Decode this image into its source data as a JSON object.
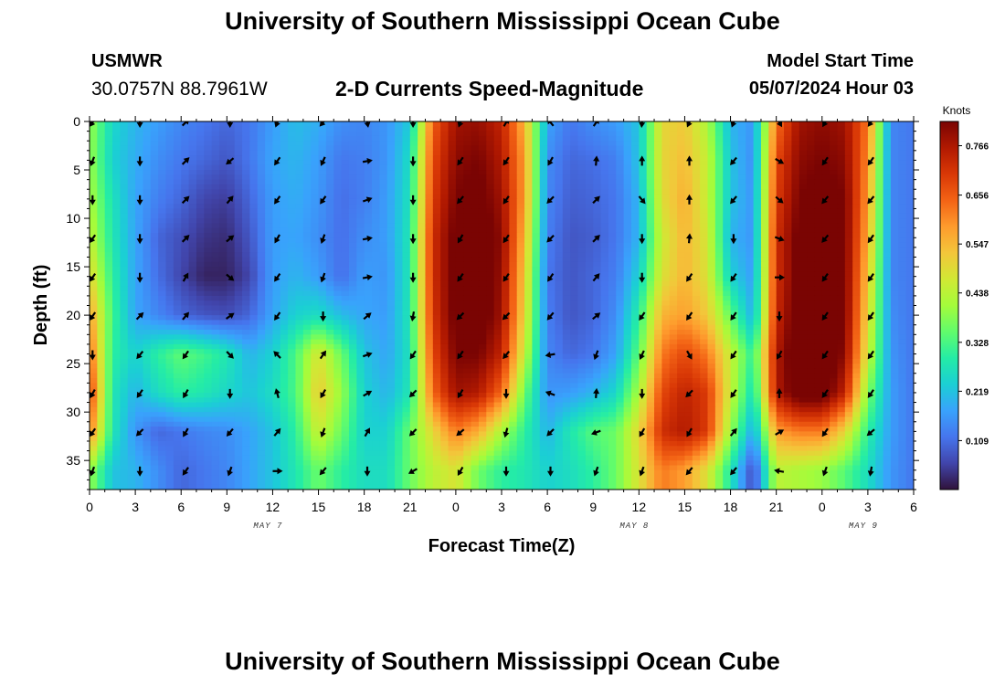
{
  "header": {
    "title": "University of Southern Mississippi Ocean Cube",
    "station_name": "USMWR",
    "station_coords": "30.0757N  88.7961W",
    "subtitle": "2-D Currents Speed-Magnitude",
    "model_start_label": "Model Start Time",
    "model_start_value": "05/07/2024 Hour 03"
  },
  "footer": {
    "title": "University of Southern Mississippi Ocean Cube"
  },
  "chart_data": {
    "type": "heatmap",
    "title": "2-D Currents Speed-Magnitude",
    "xlabel": "Forecast Time(Z)",
    "ylabel": "Depth (ft)",
    "x_range_hours": [
      0,
      54
    ],
    "y_range_ft": [
      0,
      38
    ],
    "y_inverted": true,
    "x_tick_labels": [
      "0",
      "3",
      "6",
      "9",
      "12",
      "15",
      "18",
      "21",
      "0",
      "3",
      "6",
      "9",
      "12",
      "15",
      "18",
      "21",
      "0",
      "3",
      "6"
    ],
    "y_tick_labels": [
      "0",
      "5",
      "10",
      "15",
      "20",
      "25",
      "30",
      "35"
    ],
    "y_tick_values": [
      0,
      5,
      10,
      15,
      20,
      25,
      30,
      35
    ],
    "day_labels": [
      {
        "label": "MAY 7",
        "hour": 11.7
      },
      {
        "label": "MAY 8",
        "hour": 35.7
      },
      {
        "label": "MAY 9",
        "hour": 50.7
      }
    ],
    "colorbar": {
      "unit": "Knots",
      "range": [
        0.0,
        0.82
      ],
      "tick_labels": [
        "0.766",
        "0.656",
        "0.547",
        "0.438",
        "0.328",
        "0.219",
        "0.109"
      ],
      "tick_values": [
        0.766,
        0.656,
        0.547,
        0.438,
        0.328,
        0.219,
        0.109
      ],
      "colors": [
        "#30123b",
        "#4145ab",
        "#4675ed",
        "#39a2fc",
        "#1bcfd4",
        "#24eca6",
        "#61fc6c",
        "#a4fc3b",
        "#d1e834",
        "#f3c63a",
        "#fe9b2d",
        "#f36315",
        "#d93806",
        "#b11901",
        "#7a0403"
      ]
    },
    "speed_grid_hours": [
      0,
      1.5,
      3,
      4.5,
      6,
      7.5,
      9,
      10.5,
      12,
      13.5,
      15,
      16.5,
      18,
      19.5,
      21,
      22.5,
      24,
      25.5,
      27,
      28.5,
      30,
      31.5,
      33,
      34.5,
      36,
      37.5,
      39,
      40.5,
      42,
      43.5,
      45,
      46.5,
      48,
      49.5,
      51,
      52.5,
      54
    ],
    "speed_grid_depths": [
      0,
      4,
      8,
      12,
      16,
      20,
      24,
      28,
      32,
      36
    ],
    "speed_grid": [
      [
        0.4,
        0.25,
        0.2,
        0.17,
        0.14,
        0.12,
        0.1,
        0.12,
        0.17,
        0.21,
        0.19,
        0.15,
        0.14,
        0.16,
        0.23,
        0.65,
        0.78,
        0.79,
        0.74,
        0.55,
        0.18,
        0.12,
        0.15,
        0.17,
        0.22,
        0.5,
        0.52,
        0.42,
        0.2,
        0.16,
        0.63,
        0.78,
        0.8,
        0.78,
        0.62,
        0.14,
        0.12
      ],
      [
        0.4,
        0.24,
        0.19,
        0.15,
        0.12,
        0.1,
        0.08,
        0.12,
        0.18,
        0.2,
        0.17,
        0.12,
        0.13,
        0.16,
        0.26,
        0.68,
        0.8,
        0.82,
        0.76,
        0.58,
        0.15,
        0.1,
        0.11,
        0.13,
        0.22,
        0.5,
        0.54,
        0.45,
        0.22,
        0.15,
        0.68,
        0.8,
        0.82,
        0.8,
        0.6,
        0.14,
        0.12
      ],
      [
        0.42,
        0.27,
        0.18,
        0.13,
        0.1,
        0.06,
        0.05,
        0.1,
        0.17,
        0.19,
        0.16,
        0.11,
        0.13,
        0.17,
        0.27,
        0.7,
        0.82,
        0.84,
        0.78,
        0.58,
        0.14,
        0.09,
        0.1,
        0.12,
        0.2,
        0.49,
        0.56,
        0.45,
        0.22,
        0.16,
        0.7,
        0.82,
        0.84,
        0.82,
        0.58,
        0.14,
        0.12
      ],
      [
        0.45,
        0.28,
        0.18,
        0.1,
        0.07,
        0.04,
        0.03,
        0.08,
        0.17,
        0.18,
        0.15,
        0.11,
        0.15,
        0.17,
        0.28,
        0.72,
        0.84,
        0.86,
        0.8,
        0.55,
        0.13,
        0.08,
        0.09,
        0.12,
        0.2,
        0.46,
        0.55,
        0.47,
        0.2,
        0.16,
        0.72,
        0.84,
        0.86,
        0.82,
        0.56,
        0.14,
        0.12
      ],
      [
        0.5,
        0.3,
        0.18,
        0.11,
        0.06,
        0.02,
        0.02,
        0.06,
        0.17,
        0.2,
        0.17,
        0.11,
        0.17,
        0.16,
        0.28,
        0.72,
        0.84,
        0.86,
        0.79,
        0.52,
        0.12,
        0.08,
        0.1,
        0.13,
        0.24,
        0.48,
        0.55,
        0.48,
        0.24,
        0.17,
        0.72,
        0.84,
        0.86,
        0.82,
        0.53,
        0.14,
        0.12
      ],
      [
        0.58,
        0.32,
        0.18,
        0.14,
        0.1,
        0.08,
        0.07,
        0.1,
        0.18,
        0.24,
        0.26,
        0.21,
        0.18,
        0.17,
        0.28,
        0.71,
        0.84,
        0.86,
        0.78,
        0.5,
        0.13,
        0.08,
        0.1,
        0.15,
        0.3,
        0.55,
        0.58,
        0.52,
        0.35,
        0.19,
        0.73,
        0.86,
        0.88,
        0.82,
        0.5,
        0.15,
        0.12
      ],
      [
        0.64,
        0.3,
        0.24,
        0.3,
        0.35,
        0.32,
        0.28,
        0.2,
        0.24,
        0.33,
        0.48,
        0.36,
        0.22,
        0.18,
        0.27,
        0.68,
        0.82,
        0.82,
        0.74,
        0.45,
        0.14,
        0.1,
        0.12,
        0.18,
        0.35,
        0.62,
        0.68,
        0.62,
        0.45,
        0.3,
        0.76,
        0.88,
        0.88,
        0.8,
        0.46,
        0.16,
        0.12
      ],
      [
        0.7,
        0.28,
        0.2,
        0.26,
        0.3,
        0.28,
        0.25,
        0.22,
        0.26,
        0.33,
        0.52,
        0.4,
        0.24,
        0.2,
        0.28,
        0.64,
        0.78,
        0.76,
        0.64,
        0.36,
        0.16,
        0.17,
        0.2,
        0.25,
        0.42,
        0.68,
        0.74,
        0.7,
        0.45,
        0.26,
        0.76,
        0.86,
        0.86,
        0.74,
        0.38,
        0.17,
        0.12
      ],
      [
        0.62,
        0.28,
        0.16,
        0.1,
        0.12,
        0.14,
        0.15,
        0.18,
        0.22,
        0.3,
        0.46,
        0.36,
        0.24,
        0.24,
        0.36,
        0.5,
        0.62,
        0.56,
        0.42,
        0.3,
        0.2,
        0.28,
        0.34,
        0.36,
        0.5,
        0.72,
        0.76,
        0.7,
        0.4,
        0.18,
        0.58,
        0.62,
        0.62,
        0.5,
        0.3,
        0.17,
        0.12
      ],
      [
        0.4,
        0.22,
        0.2,
        0.15,
        0.1,
        0.12,
        0.14,
        0.18,
        0.22,
        0.28,
        0.36,
        0.3,
        0.26,
        0.26,
        0.36,
        0.44,
        0.48,
        0.36,
        0.3,
        0.28,
        0.24,
        0.26,
        0.3,
        0.36,
        0.48,
        0.62,
        0.58,
        0.48,
        0.28,
        0.06,
        0.44,
        0.42,
        0.4,
        0.34,
        0.26,
        0.16,
        0.12
      ]
    ],
    "vector_hours": [
      0.2,
      3.3,
      6.3,
      9.2,
      12.3,
      15.3,
      18.2,
      21.2,
      24.3,
      27.3,
      30.2,
      33.2,
      36.2,
      39.3,
      42.2,
      45.2,
      48.2,
      51.2
    ],
    "vector_depths": [
      0,
      4,
      8,
      12,
      16,
      20,
      24,
      28,
      32,
      36
    ],
    "vector_direction_deg": [
      [
        125,
        90,
        315,
        90,
        110,
        130,
        80,
        90,
        110,
        300,
        230,
        305,
        95,
        115,
        110,
        60,
        120,
        125
      ],
      [
        110,
        90,
        315,
        140,
        125,
        115,
        350,
        90,
        125,
        125,
        120,
        275,
        270,
        270,
        130,
        30,
        125,
        125
      ],
      [
        90,
        90,
        315,
        310,
        125,
        125,
        340,
        90,
        130,
        125,
        135,
        315,
        50,
        270,
        130,
        40,
        130,
        130
      ],
      [
        125,
        90,
        315,
        320,
        120,
        110,
        350,
        90,
        120,
        125,
        135,
        315,
        90,
        275,
        90,
        20,
        130,
        125
      ],
      [
        125,
        90,
        300,
        40,
        125,
        110,
        350,
        90,
        125,
        125,
        125,
        310,
        90,
        125,
        125,
        0,
        125,
        125
      ],
      [
        125,
        315,
        310,
        325,
        125,
        90,
        320,
        100,
        135,
        135,
        130,
        320,
        125,
        125,
        125,
        90,
        125,
        125
      ],
      [
        90,
        130,
        125,
        45,
        225,
        305,
        340,
        125,
        125,
        130,
        170,
        110,
        115,
        60,
        125,
        120,
        125,
        125
      ],
      [
        120,
        125,
        120,
        90,
        255,
        120,
        330,
        135,
        120,
        90,
        200,
        275,
        90,
        135,
        125,
        270,
        125,
        125
      ],
      [
        125,
        135,
        120,
        130,
        310,
        110,
        300,
        135,
        140,
        105,
        135,
        160,
        120,
        120,
        310,
        330,
        125,
        140
      ],
      [
        110,
        90,
        125,
        110,
        0,
        130,
        90,
        150,
        120,
        90,
        90,
        110,
        110,
        130,
        130,
        190,
        110,
        100
      ]
    ]
  }
}
